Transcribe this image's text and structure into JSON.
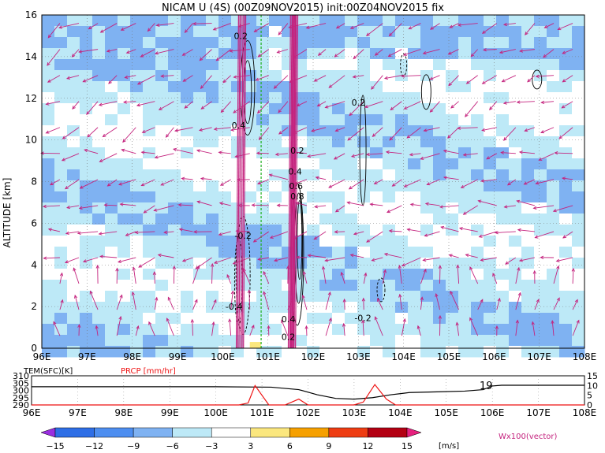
{
  "chart_data": [
    {
      "type": "heatmap",
      "title": "NICAM U (4S) (00Z09NOV2015) init:00Z04NOV2015 fix",
      "ylabel": "ALTITUDE [km]",
      "x_ticks": [
        "96E",
        "97E",
        "98E",
        "99E",
        "100E",
        "101E",
        "102E",
        "103E",
        "104E",
        "105E",
        "106E",
        "107E",
        "108E"
      ],
      "x_range": [
        96,
        108
      ],
      "y_ticks": [
        "0",
        "2",
        "4",
        "6",
        "8",
        "10",
        "12",
        "14",
        "16"
      ],
      "y_range": [
        0,
        16
      ],
      "grid": true,
      "marker_longitude": 100.85,
      "contour_labels": [
        "0.2",
        "0.4",
        "-0.2",
        "-0.4",
        "0.2",
        "0.4",
        "0.6",
        "0.8",
        "0.4",
        "0.2",
        "0.2",
        "-0.2"
      ],
      "contour_label_points": [
        {
          "lon": 100.4,
          "alt": 15.0,
          "text": "0.2"
        },
        {
          "lon": 100.35,
          "alt": 10.7,
          "text": "0.4"
        },
        {
          "lon": 100.45,
          "alt": 5.4,
          "text": "-0.2"
        },
        {
          "lon": 100.25,
          "alt": 2.0,
          "text": "-0.4"
        },
        {
          "lon": 101.65,
          "alt": 9.5,
          "text": "0.2"
        },
        {
          "lon": 101.6,
          "alt": 8.5,
          "text": "0.4"
        },
        {
          "lon": 101.62,
          "alt": 7.8,
          "text": "0.6"
        },
        {
          "lon": 101.65,
          "alt": 7.3,
          "text": "0.8"
        },
        {
          "lon": 101.45,
          "alt": 1.4,
          "text": "0.4"
        },
        {
          "lon": 101.45,
          "alt": 0.55,
          "text": "0.2"
        },
        {
          "lon": 103.0,
          "alt": 11.8,
          "text": "0.2"
        },
        {
          "lon": 103.1,
          "alt": 1.45,
          "text": "-0.2"
        }
      ],
      "vector_legend": "Wx100(vector)"
    },
    {
      "type": "line",
      "x_range": [
        96,
        108
      ],
      "series": [
        {
          "name": "TEM(SFC)[K]",
          "axis": "left",
          "range": [
            290,
            310
          ],
          "x": [
            96,
            100,
            101.2,
            101.8,
            102.2,
            102.6,
            103.0,
            103.4,
            103.8,
            104.2,
            104.8,
            105.4,
            105.8,
            106.0,
            106.2,
            107,
            108
          ],
          "values": [
            302.5,
            302.5,
            302.2,
            300.5,
            297.0,
            294.5,
            294.0,
            295.0,
            297.0,
            298.5,
            299.0,
            299.5,
            300.5,
            303.0,
            303.5,
            303.5,
            303.5
          ]
        },
        {
          "name": "PRCP [mm/hr]",
          "axis": "right",
          "range": [
            0,
            15
          ],
          "x": [
            96,
            100.5,
            100.7,
            100.85,
            101.0,
            101.15,
            101.5,
            101.8,
            102.0,
            103.0,
            103.2,
            103.45,
            103.7,
            103.9,
            108
          ],
          "values": [
            0,
            0,
            1.0,
            10.0,
            5.0,
            0,
            0,
            3.0,
            0,
            0,
            1.5,
            10.5,
            3.0,
            0,
            0
          ]
        }
      ],
      "left_ticks": [
        "290",
        "295",
        "300",
        "305",
        "310"
      ],
      "right_ticks": [
        "0",
        "5",
        "10",
        "15"
      ],
      "annotation": "19"
    }
  ],
  "colorbar": {
    "ticks": [
      "−15",
      "−12",
      "−9",
      "−6",
      "−3",
      "3",
      "6",
      "9",
      "12",
      "15"
    ],
    "unit": "[m/s]",
    "colors": [
      "#9a2ee0",
      "#2e6ee6",
      "#4d8ef0",
      "#7fb2f2",
      "#bde9f7",
      "#ffffff",
      "#fbe77e",
      "#f6a000",
      "#ee3c12",
      "#b30012",
      "#e6207e"
    ]
  },
  "colors": {
    "vector": "#c4237e",
    "marker_line": "#1fb01f",
    "prcp_line": "#ee1111",
    "temp_line": "#000000"
  }
}
